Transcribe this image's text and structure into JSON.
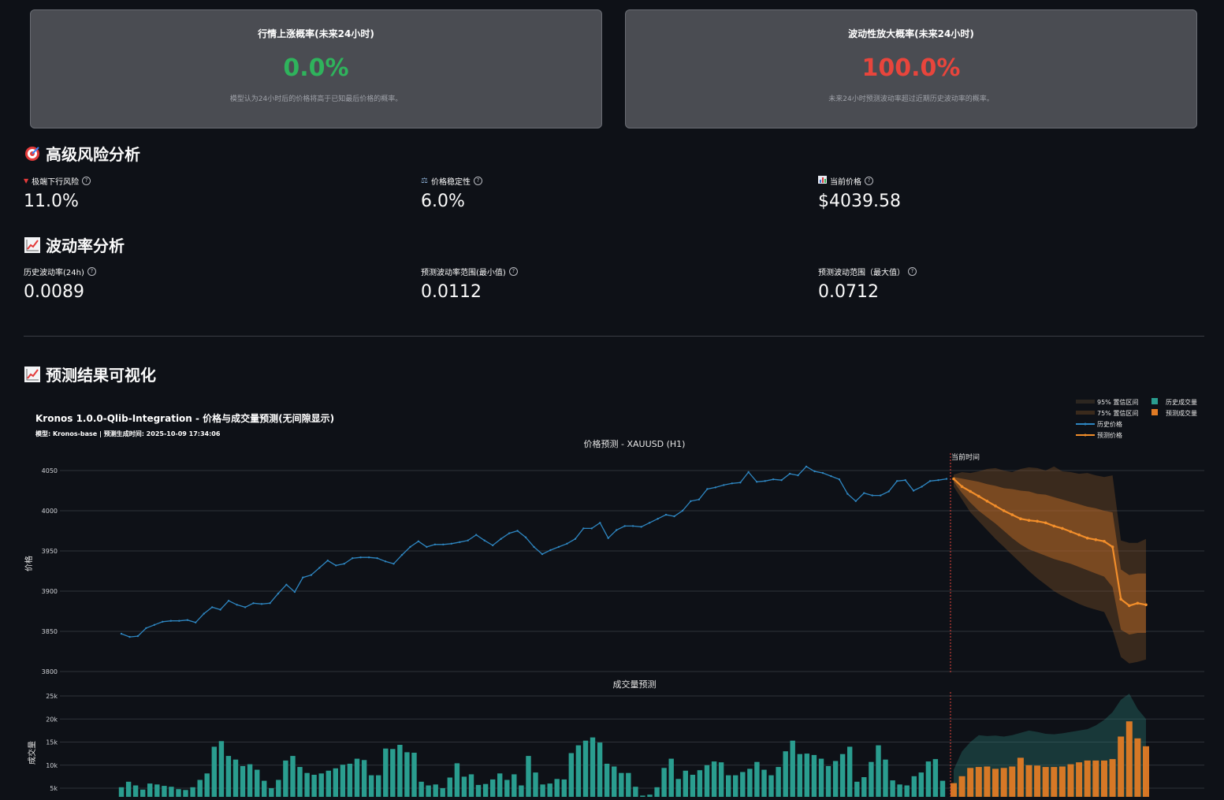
{
  "cards": [
    {
      "title": "行情上涨概率(未来24小时)",
      "value": "0.0%",
      "value_color": "#2fb35c",
      "desc": "模型认为24小时后的价格将高于已知最后价格的概率。"
    },
    {
      "title": "波动性放大概率(未来24小时)",
      "value": "100.0%",
      "value_color": "#e8453c",
      "desc": "未来24小时预测波动率超过近期历史波动率的概率。"
    }
  ],
  "risk_section": {
    "title": "高级风险分析",
    "metrics": [
      {
        "icon": "down-triangle-icon",
        "label": "极端下行风险",
        "value": "11.0%"
      },
      {
        "icon": "balance-scale-icon",
        "label": "价格稳定性",
        "value": "6.0%"
      },
      {
        "icon": "bar-chart-icon",
        "label": "当前价格",
        "value": "$4039.58"
      }
    ]
  },
  "volatility_section": {
    "title": "波动率分析",
    "metrics": [
      {
        "label": "历史波动率(24h)",
        "value": "0.0089"
      },
      {
        "label": "预测波动率范围(最小值)",
        "value": "0.0112"
      },
      {
        "label": "预测波动范围（最大值）",
        "value": "0.0712"
      }
    ]
  },
  "viz_section": {
    "title": "预测结果可视化"
  },
  "chart_data": {
    "type": "line",
    "title": "Kronos 1.0.0-Qlib-Integration - 价格与成交量预测(无间隙显示)",
    "subtitle": "模型: Kronos-base | 预测生成时间: 2025-10-09 17:34:06",
    "price_panel": {
      "subplot_title": "价格预测 - XAUUSD (H1)",
      "ylabel": "价格",
      "ylim": [
        3800,
        4060
      ],
      "yticks": [
        "4050",
        "4000",
        "3950",
        "3900",
        "3850",
        "3800"
      ],
      "current_time_label": "当前时间",
      "series": [
        {
          "name": "历史价格",
          "color": "#2e86c1",
          "values": [
            3847,
            3843,
            3844,
            3854,
            3858,
            3862,
            3863,
            3863,
            3864,
            3861,
            3872,
            3880,
            3877,
            3888,
            3883,
            3880,
            3885,
            3884,
            3885,
            3897,
            3908,
            3899,
            3917,
            3920,
            3929,
            3938,
            3932,
            3934,
            3941,
            3942,
            3942,
            3941,
            3937,
            3934,
            3945,
            3955,
            3962,
            3955,
            3958,
            3958,
            3959,
            3961,
            3963,
            3970,
            3963,
            3957,
            3965,
            3972,
            3975,
            3967,
            3955,
            3946,
            3951,
            3955,
            3959,
            3965,
            3978,
            3978,
            3985,
            3966,
            3976,
            3981,
            3981,
            3980,
            3985,
            3990,
            3995,
            3993,
            4000,
            4012,
            4014,
            4027,
            4029,
            4032,
            4034,
            4035,
            4048,
            4036,
            4037,
            4039,
            4038,
            4046,
            4044,
            4055,
            4049,
            4047,
            4043,
            4039,
            4021,
            4012,
            4022,
            4019,
            4019,
            4024,
            4037,
            4038,
            4025,
            4030,
            4037,
            4038,
            4039.58
          ]
        },
        {
          "name": "预测价格",
          "color": "#f28e2b",
          "values": [
            4039.58,
            4030,
            4024,
            4018,
            4012,
            4006,
            4000,
            3995,
            3990,
            3988,
            3987,
            3985,
            3981,
            3978,
            3974,
            3970,
            3966,
            3964,
            3962,
            3955,
            3890,
            3882,
            3885,
            3883
          ]
        }
      ],
      "bands": [
        {
          "name": "95% 置信区间",
          "upper": [
            4045,
            4048,
            4047,
            4049,
            4052,
            4053,
            4050,
            4048,
            4052,
            4054,
            4053,
            4050,
            4055,
            4049,
            4048,
            4046,
            4047,
            4044,
            4042,
            4044,
            3963,
            3960,
            3960,
            3965
          ],
          "lower": [
            4030,
            4014,
            3998,
            3987,
            3976,
            3965,
            3955,
            3945,
            3935,
            3925,
            3916,
            3908,
            3900,
            3894,
            3889,
            3884,
            3880,
            3877,
            3874,
            3852,
            3818,
            3810,
            3812,
            3815
          ]
        },
        {
          "name": "75% 置信区间",
          "upper": [
            4042,
            4040,
            4038,
            4036,
            4033,
            4031,
            4028,
            4027,
            4025,
            4024,
            4021,
            4020,
            4017,
            4014,
            4011,
            4008,
            4005,
            4003,
            4000,
            3998,
            3927,
            3920,
            3922,
            3922
          ],
          "lower": [
            4036,
            4022,
            4010,
            4000,
            3992,
            3984,
            3975,
            3966,
            3958,
            3952,
            3948,
            3944,
            3940,
            3937,
            3934,
            3930,
            3926,
            3922,
            3918,
            3905,
            3852,
            3846,
            3848,
            3848
          ]
        }
      ]
    },
    "volume_panel": {
      "subplot_title": "成交量预测",
      "ylabel": "成交量",
      "yticks": [
        "25k",
        "20k",
        "15k",
        "10k",
        "5k"
      ],
      "series": [
        {
          "name": "历史成交量",
          "color": "#2a9d8f",
          "values": [
            5200,
            6400,
            5600,
            4700,
            6000,
            5800,
            5500,
            5300,
            4800,
            4600,
            5200,
            6800,
            8200,
            14000,
            15200,
            12000,
            11200,
            9800,
            10200,
            9000,
            6600,
            5000,
            6800,
            11000,
            12000,
            9600,
            8300,
            7900,
            8200,
            8800,
            9300,
            10100,
            10300,
            11400,
            11100,
            7800,
            7800,
            13600,
            13500,
            14400,
            12800,
            12700,
            6400,
            5600,
            5800,
            5000,
            7300,
            10400,
            7500,
            8000,
            5700,
            5900,
            6900,
            8200,
            6800,
            8000,
            5600,
            12000,
            8400,
            5800,
            6000,
            7000,
            6900,
            12600,
            14300,
            15300,
            16000,
            14900,
            10300,
            9700,
            8300,
            8300,
            5300,
            3400,
            3600,
            5200,
            9400,
            11400,
            7000,
            8800,
            7900,
            8900,
            10000,
            10800,
            10600,
            7800,
            7800,
            8500,
            9200,
            10700,
            9000,
            7800,
            9600,
            13000,
            15300,
            12400,
            12500,
            12200,
            11400,
            9800,
            10900,
            12400,
            14000,
            6400,
            7400,
            10700,
            14300,
            11200,
            6700,
            5800,
            5600,
            7600,
            8400,
            10800,
            11300,
            6600
          ]
        },
        {
          "name": "预测成交量",
          "color": "#e07b25",
          "values": [
            6100,
            7600,
            9400,
            9600,
            9700,
            9200,
            9400,
            9700,
            11600,
            10000,
            9900,
            9600,
            9600,
            9700,
            10200,
            10600,
            11000,
            11000,
            11000,
            11300,
            16200,
            19500,
            15800,
            14100
          ]
        }
      ],
      "bands": [
        {
          "name": "volume-upper",
          "upper": [
            9000,
            13000,
            15000,
            16500,
            16300,
            16400,
            16200,
            16500,
            17000,
            17500,
            17200,
            16800,
            16700,
            16900,
            17200,
            17500,
            17800,
            18600,
            19800,
            21500,
            24200,
            25500,
            22200,
            20000
          ]
        }
      ]
    }
  }
}
